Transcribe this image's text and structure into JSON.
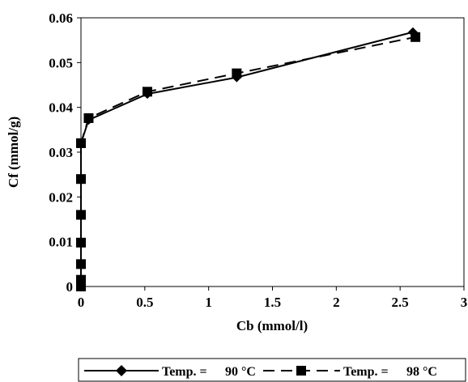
{
  "chart_data": {
    "type": "line",
    "xlabel": "Cb (mmol/l)",
    "ylabel": "Cf (mmol/g)",
    "xlim": [
      0,
      3
    ],
    "ylim": [
      0,
      0.06
    ],
    "x_ticks": [
      "0",
      "0.5",
      "1",
      "1.5",
      "2",
      "2.5",
      "3"
    ],
    "y_ticks": [
      "0",
      "0.01",
      "0.02",
      "0.03",
      "0.04",
      "0.05",
      "0.06"
    ],
    "grid": false,
    "legend_position": "bottom",
    "series": [
      {
        "name_prefix": "Temp. =",
        "name_value": "90 °C",
        "marker": "diamond",
        "line_style": "solid",
        "color": "#000000",
        "points": [
          [
            0.0,
            0.0
          ],
          [
            0.0,
            0.0015
          ],
          [
            0.0,
            0.005
          ],
          [
            0.0,
            0.0098
          ],
          [
            0.0,
            0.016
          ],
          [
            0.0,
            0.024
          ],
          [
            0.0,
            0.032
          ],
          [
            0.06,
            0.0372
          ],
          [
            0.52,
            0.043
          ],
          [
            1.22,
            0.0467
          ],
          [
            2.6,
            0.0568
          ]
        ]
      },
      {
        "name_prefix": "Temp. =",
        "name_value": "98 °C",
        "marker": "square",
        "line_style": "dashed",
        "color": "#000000",
        "points": [
          [
            0.0,
            0.0
          ],
          [
            0.0,
            0.0015
          ],
          [
            0.0,
            0.005
          ],
          [
            0.0,
            0.0098
          ],
          [
            0.0,
            0.016
          ],
          [
            0.0,
            0.024
          ],
          [
            0.0,
            0.032
          ],
          [
            0.06,
            0.0376
          ],
          [
            0.52,
            0.0435
          ],
          [
            1.22,
            0.0476
          ],
          [
            2.62,
            0.0557
          ]
        ]
      }
    ]
  }
}
